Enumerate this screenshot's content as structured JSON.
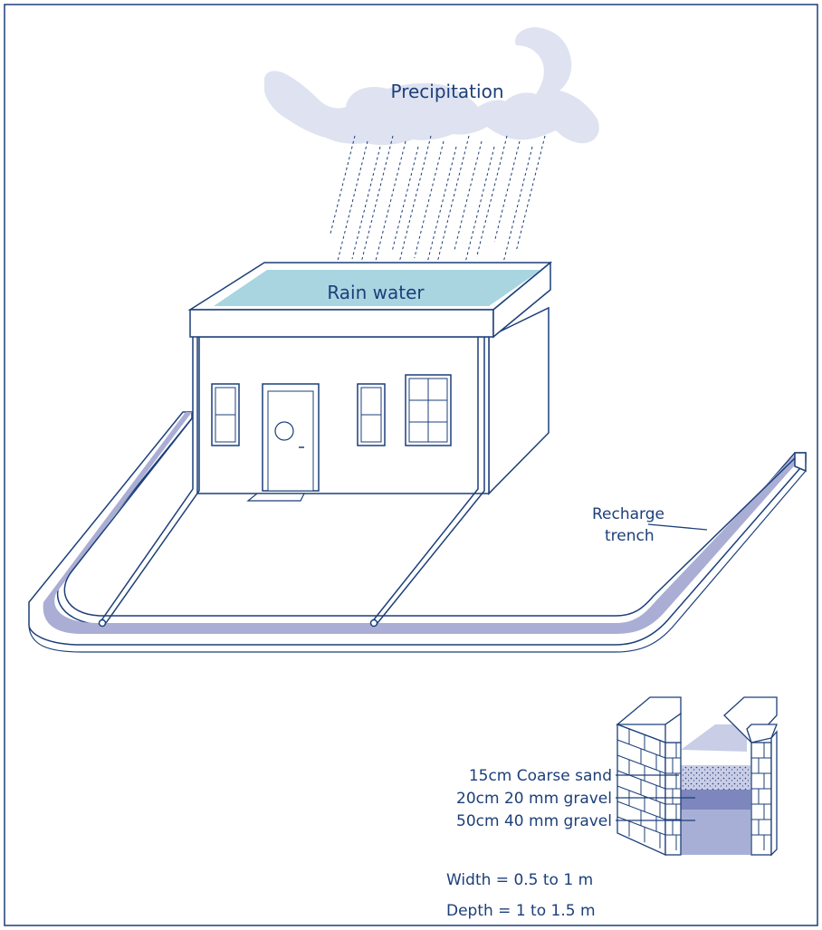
{
  "labels": {
    "precipitation": "Precipitation",
    "rain_water": "Rain water",
    "recharge_line1": "Recharge",
    "recharge_line2": "trench"
  },
  "layers": [
    {
      "label": "15cm Coarse sand",
      "color": "#c9cde6"
    },
    {
      "label": "20cm 20 mm gravel",
      "color": "#7d86bd"
    },
    {
      "label": "50cm 40 mm gravel",
      "color": "#a8afd6"
    }
  ],
  "dimensions": {
    "width": "Width = 0.5 to 1 m",
    "depth": "Depth = 1 to 1.5 m"
  },
  "colors": {
    "line": "#1c3f7a",
    "cloud": "#dfe2f0",
    "roof_water": "#a9d5e1",
    "trench_fill": "#aaaed4"
  }
}
